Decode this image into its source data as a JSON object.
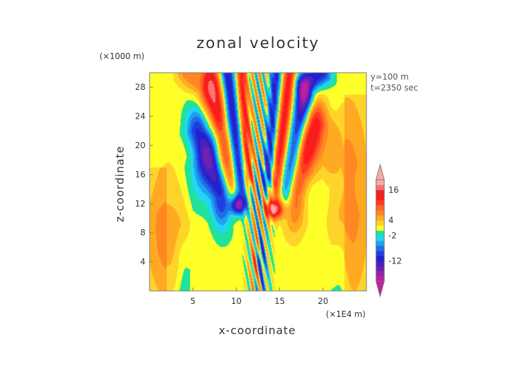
{
  "chart_data": {
    "type": "heatmap",
    "title": "zonal velocity",
    "xlabel": "x-coordinate",
    "ylabel": "z-coordinate",
    "x_unit": "(×1E4 m)",
    "y_unit": "(×1000 m)",
    "xlim": [
      0,
      25
    ],
    "ylim": [
      0,
      30
    ],
    "x_ticks": [
      5,
      10,
      15,
      20
    ],
    "y_ticks": [
      4,
      8,
      12,
      16,
      20,
      24,
      28
    ],
    "annotations": [
      "y=100 m",
      "t=2350 sec"
    ],
    "grid": false,
    "legend": "colorbar-right",
    "colorbar": {
      "levels": [
        -20,
        -18,
        -16,
        -14,
        -12,
        -10,
        -8,
        -6,
        -4,
        -2,
        0,
        2,
        4,
        6,
        8,
        10,
        12,
        14,
        16,
        18,
        20
      ],
      "colors": [
        "#c21ea0",
        "#9a1fb0",
        "#6e21b5",
        "#4a20c0",
        "#2222cc",
        "#1f3fe0",
        "#1f6ee8",
        "#20a0f0",
        "#21d6f5",
        "#20e29a",
        "#ffff2a",
        "#ffd42a",
        "#ffaa22",
        "#ff8822",
        "#ff6622",
        "#ff3a22",
        "#ff1a1a",
        "#ee2222",
        "#ff7070",
        "#ffaaaa"
      ],
      "tick_labels": [
        "16",
        "4",
        "-2",
        "-12"
      ],
      "tick_values": [
        16,
        4,
        -2,
        -12
      ],
      "extend": "both"
    },
    "background_value": 1,
    "features": [
      {
        "x": 12.6,
        "z": 14,
        "sx": 0.5,
        "sz": 12.0,
        "a": 10,
        "fx": 1.0
      },
      {
        "x": 10.2,
        "z": 11.8,
        "sx": 0.65,
        "sz": 0.9,
        "a": -17
      },
      {
        "x": 14.3,
        "z": 11.2,
        "sx": 0.8,
        "sz": 0.9,
        "a": 18
      },
      {
        "x": 12.8,
        "z": 4.5,
        "sx": 0.3,
        "sz": 1.8,
        "a": -7
      },
      {
        "x": 12.2,
        "z": 4.0,
        "sx": 0.3,
        "sz": 2.2,
        "a": 6
      }
    ],
    "jets": [
      {
        "x0": 8.5,
        "z0": 13.0,
        "x1": 5.5,
        "z1": 22.0,
        "w": 0.9,
        "a": -12
      },
      {
        "x0": 9.5,
        "z0": 14.0,
        "x1": 7.0,
        "z1": 29.5,
        "w": 0.7,
        "a": 11
      },
      {
        "x0": 10.5,
        "z0": 15.0,
        "x1": 9.0,
        "z1": 30.0,
        "w": 0.55,
        "a": -13
      },
      {
        "x0": 11.4,
        "z0": 16.0,
        "x1": 10.6,
        "z1": 30.0,
        "w": 0.45,
        "a": 12
      },
      {
        "x0": 13.7,
        "z0": 16.0,
        "x1": 14.6,
        "z1": 30.0,
        "w": 0.45,
        "a": -12
      },
      {
        "x0": 14.6,
        "z0": 15.0,
        "x1": 16.2,
        "z1": 30.0,
        "w": 0.55,
        "a": 13
      },
      {
        "x0": 15.8,
        "z0": 14.0,
        "x1": 17.8,
        "z1": 27.0,
        "w": 0.65,
        "a": -11
      },
      {
        "x0": 16.6,
        "z0": 13.0,
        "x1": 19.0,
        "z1": 23.0,
        "w": 0.9,
        "a": 11
      },
      {
        "x0": 18.0,
        "z0": 28.0,
        "x1": 19.8,
        "z1": 30.0,
        "w": 0.8,
        "a": -13
      },
      {
        "x0": 6.0,
        "z0": 27.5,
        "x1": 4.5,
        "z1": 30.0,
        "w": 0.9,
        "a": 7
      },
      {
        "x0": 7.2,
        "z0": 20.0,
        "x1": 6.0,
        "z1": 17.0,
        "w": 0.9,
        "a": -5
      }
    ],
    "regions": [
      {
        "type": "yellow-left",
        "x0": 0,
        "x1": 4.5,
        "z0": 0,
        "z1": 17,
        "a": 3
      },
      {
        "type": "yellow-right",
        "x0": 20.5,
        "x1": 25,
        "z0": 0,
        "z1": 25,
        "a": 3
      },
      {
        "type": "yellow-left-upper",
        "x0": 6.0,
        "x1": 8.8,
        "z0": 22,
        "z1": 30,
        "a": 3
      },
      {
        "type": "yellow-right-upper",
        "x0": 17.5,
        "x1": 21.8,
        "z0": 15,
        "z1": 25,
        "a": 3
      },
      {
        "type": "green-band",
        "x0": 0,
        "x1": 25,
        "z0": 10,
        "z1": 18,
        "a": -1
      }
    ]
  }
}
